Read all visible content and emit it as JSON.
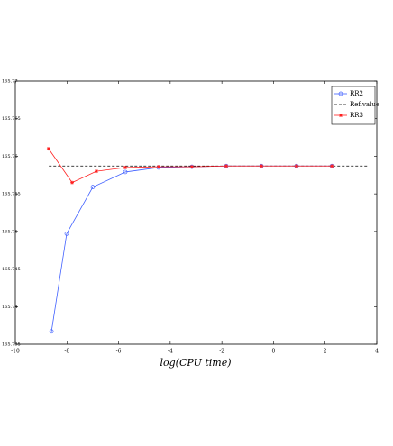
{
  "chart_data": {
    "type": "line",
    "xlabel": "log(CPU time)",
    "xlim": [
      -10,
      4
    ],
    "xticks": [
      -10,
      -8,
      -6,
      -4,
      -2,
      0,
      2,
      4
    ],
    "ylim": [
      165.735,
      165.77
    ],
    "yticks": [
      165.735,
      165.74,
      165.745,
      165.75,
      165.755,
      165.76,
      165.765,
      165.77
    ],
    "grid": false,
    "legend": "top-right",
    "series": [
      {
        "name": "RR2",
        "color": "#4060ff",
        "marker": "circle",
        "dashed": false,
        "x": [
          -8.6,
          -8.01,
          -7.0,
          -5.74,
          -4.45,
          -3.16,
          -1.83,
          -0.47,
          0.89,
          2.26
        ],
        "values": [
          165.7367,
          165.7497,
          165.7559,
          165.7579,
          165.7585,
          165.7586,
          165.7587,
          165.7587,
          165.7587,
          165.7587
        ]
      },
      {
        "name": "Ref.value",
        "color": "#000000",
        "marker": "none",
        "dashed": true,
        "x": [
          -8.7,
          3.65
        ],
        "values": [
          165.7587,
          165.7587
        ]
      },
      {
        "name": "RR3",
        "color": "#ff2020",
        "marker": "star",
        "dashed": false,
        "x": [
          -8.71,
          -7.8,
          -6.86,
          -5.74,
          -4.45,
          -3.16,
          -1.83,
          -0.47,
          0.89,
          2.26
        ],
        "values": [
          165.761,
          165.7565,
          165.758,
          165.7585,
          165.7586,
          165.7586,
          165.7587,
          165.7587,
          165.7587,
          165.7587
        ]
      }
    ]
  }
}
